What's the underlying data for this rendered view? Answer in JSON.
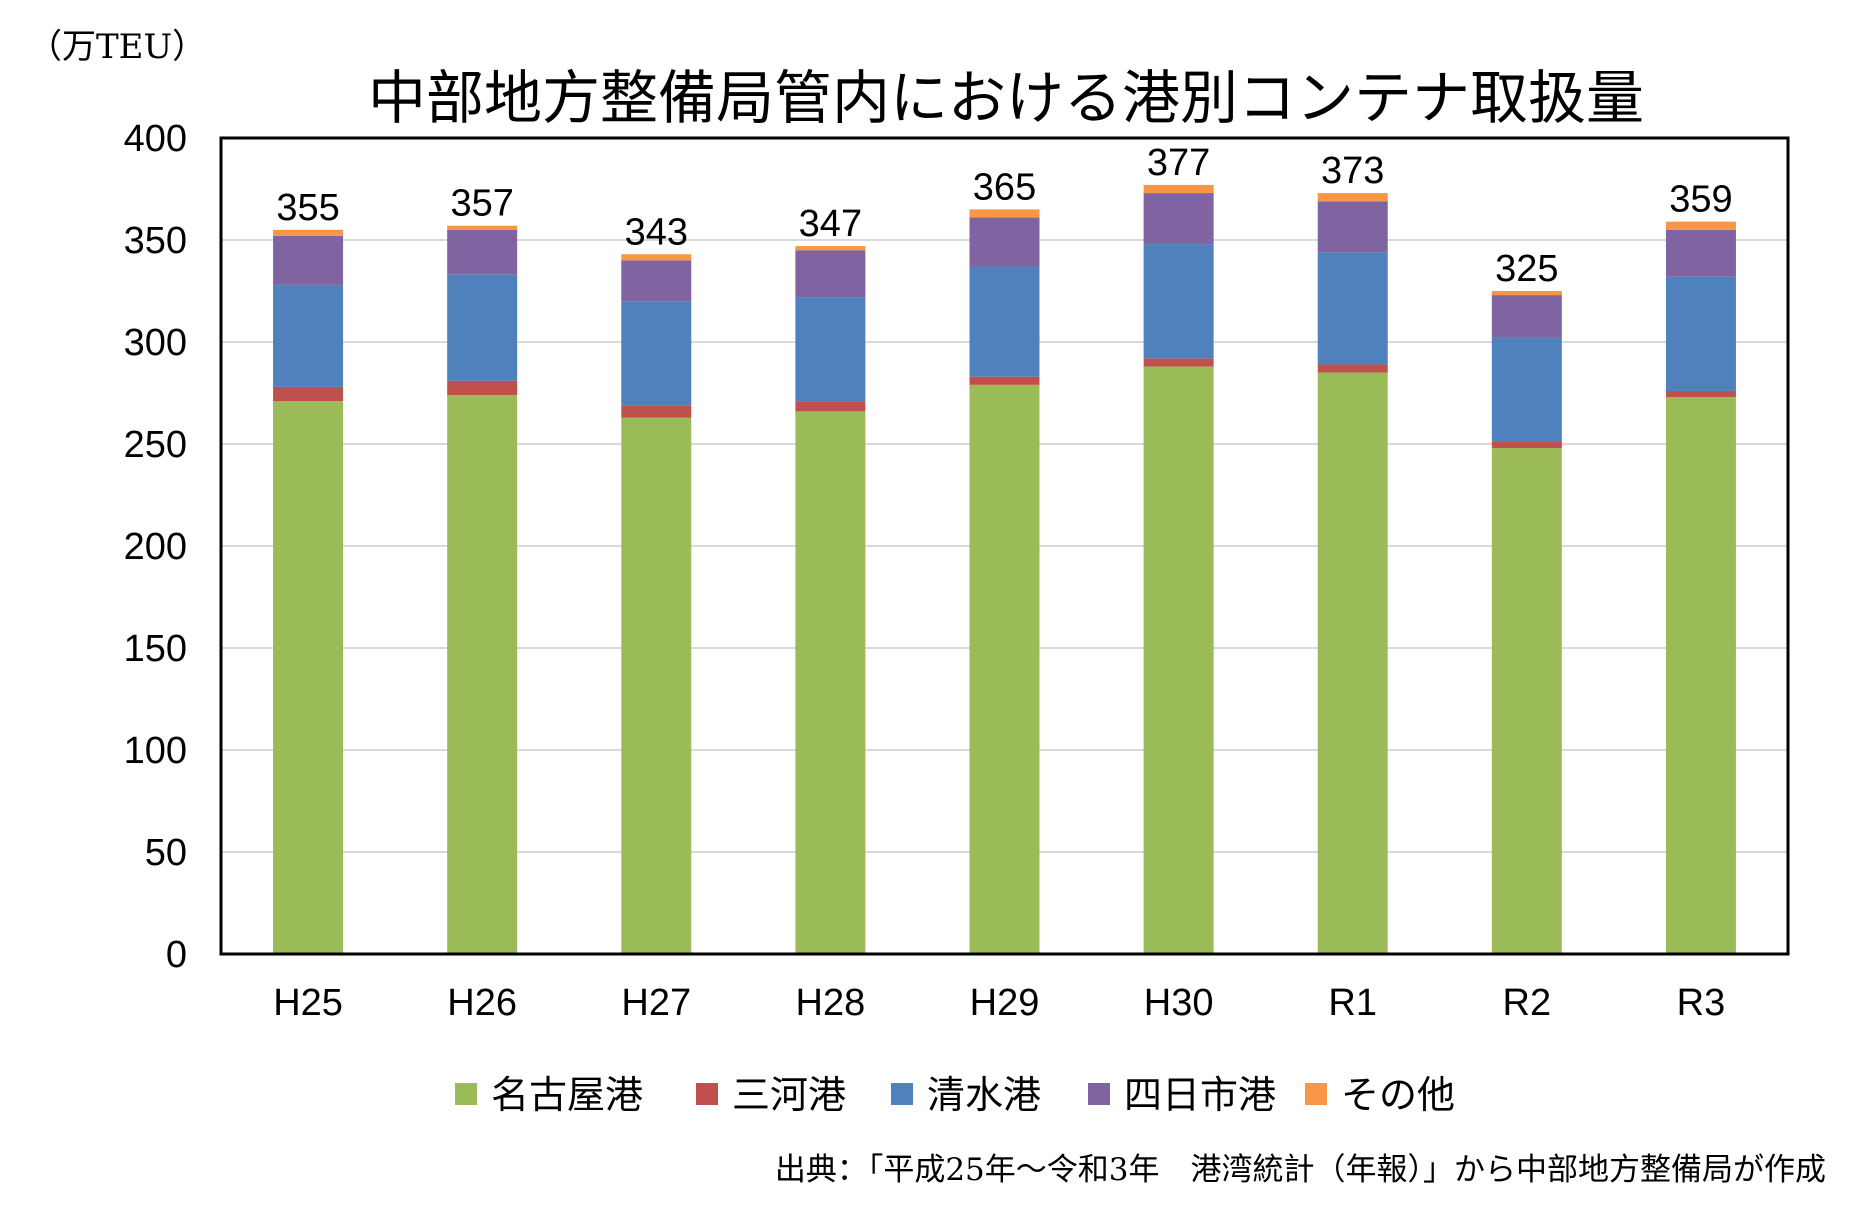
{
  "chart_data": {
    "type": "bar",
    "stacked": true,
    "title": "中部地方整備局管内における港別コンテナ取扱量",
    "unit_label": "（万TEU）",
    "source_note": "出典：「平成25年～令和3年　港湾統計（年報）」から中部地方整備局が作成",
    "categories": [
      "H25",
      "H26",
      "H27",
      "H28",
      "H29",
      "H30",
      "R1",
      "R2",
      "R3"
    ],
    "ylim": [
      0,
      400
    ],
    "yticks": [
      0,
      50,
      100,
      150,
      200,
      250,
      300,
      350,
      400
    ],
    "grid": true,
    "legend_position": "bottom",
    "series": [
      {
        "name": "名古屋港",
        "color": "#9BBB59",
        "values": [
          271,
          274,
          263,
          266,
          279,
          288,
          285,
          248,
          273
        ]
      },
      {
        "name": "三河港",
        "color": "#C0504D",
        "values": [
          7,
          7,
          6,
          5,
          4,
          4,
          4,
          3,
          3
        ]
      },
      {
        "name": "清水港",
        "color": "#4F81BD",
        "values": [
          50,
          52,
          51,
          51,
          54,
          56,
          55,
          51,
          56
        ]
      },
      {
        "name": "四日市港",
        "color": "#8064A2",
        "values": [
          24,
          22,
          20,
          23,
          24,
          25,
          25,
          21,
          23
        ]
      },
      {
        "name": "その他",
        "color": "#F79646",
        "values": [
          3,
          2,
          3,
          2,
          4,
          4,
          4,
          2,
          4
        ]
      }
    ],
    "totals": [
      355,
      357,
      343,
      347,
      365,
      377,
      373,
      325,
      359
    ]
  }
}
